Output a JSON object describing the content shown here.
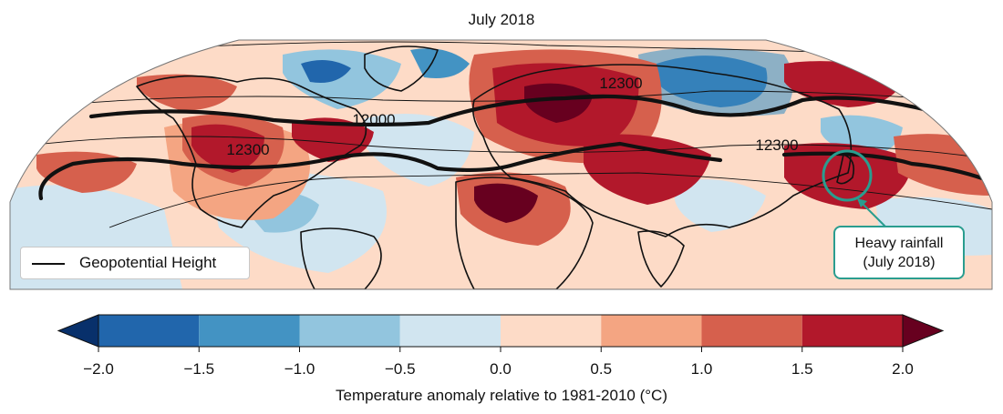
{
  "title": "July 2018",
  "legend": {
    "label": "Geopotential Height"
  },
  "contour_labels": [
    "12000",
    "12300",
    "12300",
    "12300"
  ],
  "annotation": {
    "line1": "Heavy rainfall",
    "line2": "(July 2018)",
    "color": "#2a9d8f"
  },
  "colorbar": {
    "label": "Temperature anomaly relative to 1981-2010 (°C)",
    "ticks": [
      "−2.0",
      "−1.5",
      "−1.0",
      "−0.5",
      "0.0",
      "0.5",
      "1.0",
      "1.5",
      "2.0"
    ],
    "min": -2.0,
    "max": 2.0,
    "extend": "both",
    "colors": [
      "#08306b",
      "#2166ac",
      "#4393c3",
      "#92c5de",
      "#d1e5f0",
      "#fddbc7",
      "#f4a582",
      "#d6604d",
      "#b2182b",
      "#67001f"
    ]
  }
}
